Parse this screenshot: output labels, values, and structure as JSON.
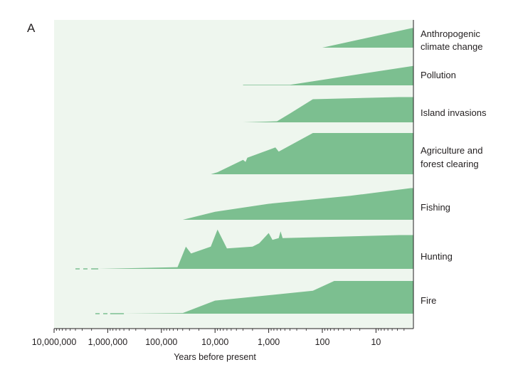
{
  "panel_label": "A",
  "chart_data": {
    "type": "area",
    "title": "",
    "xlabel": "Years before present",
    "ylabel": "",
    "x_scale": "log",
    "x_reversed": true,
    "x_ticks": [
      {
        "value": 10000000,
        "label": "10,000,000"
      },
      {
        "value": 1000000,
        "label": "1,000,000"
      },
      {
        "value": 100000,
        "label": "100,000"
      },
      {
        "value": 10000,
        "label": "10,000"
      },
      {
        "value": 1000,
        "label": "1,000"
      },
      {
        "value": 100,
        "label": "100"
      },
      {
        "value": 10,
        "label": "10"
      }
    ],
    "background_color": "#eef6ee",
    "fill_color": "#7cbf90",
    "intensity_range": [
      0,
      1
    ],
    "series": [
      {
        "name": "Anthropogenic climate change",
        "label_lines": [
          "Anthropogenic",
          "climate change"
        ],
        "dashed_tail": null,
        "points": [
          [
            100,
            0
          ],
          [
            2,
            1.0
          ]
        ]
      },
      {
        "name": "Pollution",
        "label_lines": [
          "Pollution"
        ],
        "dashed_tail": null,
        "points": [
          [
            3000,
            0.02
          ],
          [
            400,
            0.02
          ],
          [
            2,
            0.72
          ]
        ]
      },
      {
        "name": "Island invasions",
        "label_lines": [
          "Island invasions"
        ],
        "dashed_tail": null,
        "points": [
          [
            3000,
            0
          ],
          [
            700,
            0.03
          ],
          [
            400,
            0.25
          ],
          [
            150,
            0.65
          ],
          [
            2,
            0.72
          ]
        ]
      },
      {
        "name": "Agriculture and forest clearing",
        "label_lines": [
          "Agriculture and",
          "forest clearing"
        ],
        "dashed_tail": null,
        "points": [
          [
            12000,
            0
          ],
          [
            9000,
            0.05
          ],
          [
            3000,
            0.35
          ],
          [
            2700,
            0.3
          ],
          [
            2500,
            0.4
          ],
          [
            750,
            0.65
          ],
          [
            650,
            0.55
          ],
          [
            150,
            1.0
          ],
          [
            2,
            1.0
          ]
        ]
      },
      {
        "name": "Fishing",
        "label_lines": [
          "Fishing"
        ],
        "dashed_tail": null,
        "points": [
          [
            40000,
            0
          ],
          [
            10000,
            0.25
          ],
          [
            1000,
            0.5
          ],
          [
            30,
            0.75
          ],
          [
            2,
            1.0
          ]
        ]
      },
      {
        "name": "Hunting",
        "label_lines": [
          "Hunting"
        ],
        "dashed_tail": {
          "from": 4000000,
          "to": 2000000
        },
        "points": [
          [
            1500000,
            0
          ],
          [
            50000,
            0.05
          ],
          [
            35000,
            0.65
          ],
          [
            28000,
            0.45
          ],
          [
            12000,
            0.65
          ],
          [
            9000,
            1.15
          ],
          [
            6000,
            0.6
          ],
          [
            2000,
            0.65
          ],
          [
            1500,
            0.75
          ],
          [
            1000,
            1.05
          ],
          [
            850,
            0.85
          ],
          [
            650,
            0.9
          ],
          [
            600,
            1.1
          ],
          [
            550,
            0.9
          ],
          [
            2,
            1.0
          ]
        ]
      },
      {
        "name": "Fire",
        "label_lines": [
          "Fire"
        ],
        "dashed_tail": {
          "from": 1700000,
          "to": 900000
        },
        "points": [
          [
            500000,
            0
          ],
          [
            40000,
            0.02
          ],
          [
            10000,
            0.4
          ],
          [
            150,
            0.7
          ],
          [
            60,
            1.0
          ],
          [
            2,
            1.0
          ]
        ]
      }
    ]
  }
}
